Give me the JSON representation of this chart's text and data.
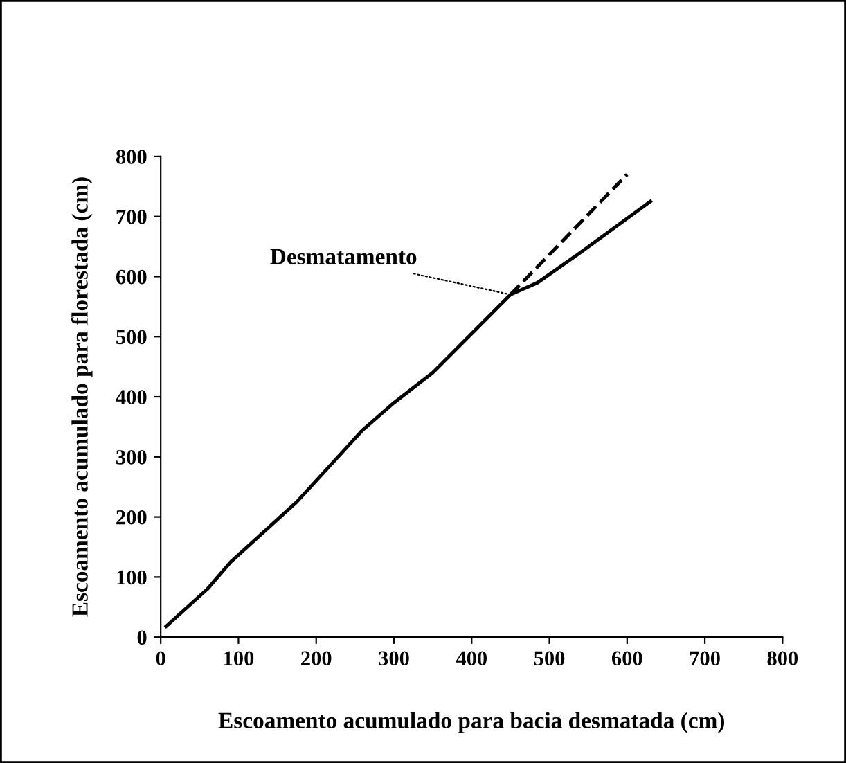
{
  "chart_data": {
    "type": "line",
    "xlabel": "Escoamento acumulado para bacia desmatada (cm)",
    "ylabel": "Escoamento acumulado para florestada (cm)",
    "xlim": [
      0,
      800
    ],
    "ylim": [
      0,
      800
    ],
    "xticks": [
      0,
      100,
      200,
      300,
      400,
      500,
      600,
      700,
      800
    ],
    "yticks": [
      0,
      100,
      200,
      300,
      400,
      500,
      600,
      700,
      800
    ],
    "grid": false,
    "legend": false,
    "marker": "none",
    "series": [
      {
        "color": "#000000",
        "line_style": "solid",
        "x": [
          7,
          60,
          90,
          175,
          260,
          300,
          350,
          450,
          485,
          540,
          630
        ],
        "values": [
          18,
          80,
          125,
          225,
          345,
          390,
          440,
          570,
          590,
          640,
          725
        ]
      },
      {
        "color": "#000000",
        "line_style": "dashed",
        "x": [
          450,
          600
        ],
        "values": [
          570,
          770
        ]
      }
    ],
    "annotations": [
      {
        "text": "Desmatamento",
        "x": 450,
        "y": 570
      }
    ]
  }
}
